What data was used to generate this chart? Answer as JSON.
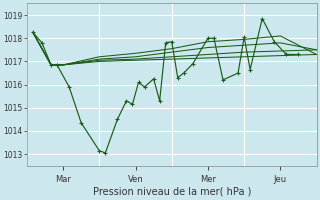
{
  "xlabel": "Pression niveau de la mer( hPa )",
  "bg_color": "#cce8ee",
  "line_color": "#1a5c1a",
  "grid_color": "#b0d8e0",
  "ylim": [
    1012.5,
    1019.5
  ],
  "yticks": [
    1013,
    1014,
    1015,
    1016,
    1017,
    1018,
    1019
  ],
  "xlim": [
    0,
    96
  ],
  "day_ticks": [
    12,
    36,
    60,
    84
  ],
  "day_lines": [
    0,
    24,
    48,
    72,
    96
  ],
  "day_labels": [
    "Mar",
    "Ven",
    "Mer",
    "Jeu"
  ],
  "series_main": [
    [
      2,
      1018.25
    ],
    [
      5,
      1017.8
    ],
    [
      8,
      1016.85
    ],
    [
      10,
      1016.85
    ],
    [
      14,
      1015.9
    ],
    [
      18,
      1014.35
    ],
    [
      24,
      1013.15
    ],
    [
      26,
      1013.05
    ],
    [
      30,
      1014.5
    ],
    [
      33,
      1015.3
    ],
    [
      35,
      1015.15
    ],
    [
      37,
      1016.1
    ],
    [
      39,
      1015.9
    ],
    [
      42,
      1016.25
    ],
    [
      44,
      1015.3
    ],
    [
      46,
      1017.8
    ],
    [
      48,
      1017.85
    ],
    [
      50,
      1016.3
    ],
    [
      52,
      1016.5
    ],
    [
      55,
      1016.9
    ],
    [
      60,
      1018.0
    ],
    [
      62,
      1018.0
    ],
    [
      65,
      1016.2
    ],
    [
      70,
      1016.5
    ],
    [
      72,
      1018.05
    ],
    [
      74,
      1016.65
    ],
    [
      78,
      1018.85
    ],
    [
      82,
      1017.85
    ],
    [
      86,
      1017.3
    ],
    [
      90,
      1017.3
    ]
  ],
  "series_flat": [
    [
      [
        2,
        1018.25
      ],
      [
        8,
        1016.85
      ],
      [
        12,
        1016.85
      ],
      [
        24,
        1017.0
      ],
      [
        36,
        1017.05
      ],
      [
        48,
        1017.1
      ],
      [
        60,
        1017.15
      ],
      [
        72,
        1017.2
      ],
      [
        84,
        1017.25
      ],
      [
        96,
        1017.3
      ]
    ],
    [
      [
        2,
        1018.25
      ],
      [
        8,
        1016.85
      ],
      [
        12,
        1016.85
      ],
      [
        24,
        1017.05
      ],
      [
        36,
        1017.1
      ],
      [
        48,
        1017.2
      ],
      [
        60,
        1017.3
      ],
      [
        72,
        1017.4
      ],
      [
        84,
        1017.45
      ],
      [
        96,
        1017.5
      ]
    ],
    [
      [
        2,
        1018.25
      ],
      [
        8,
        1016.85
      ],
      [
        12,
        1016.85
      ],
      [
        24,
        1017.1
      ],
      [
        36,
        1017.2
      ],
      [
        48,
        1017.4
      ],
      [
        60,
        1017.6
      ],
      [
        72,
        1017.7
      ],
      [
        84,
        1017.8
      ],
      [
        96,
        1017.5
      ]
    ],
    [
      [
        2,
        1018.25
      ],
      [
        8,
        1016.85
      ],
      [
        12,
        1016.85
      ],
      [
        24,
        1017.2
      ],
      [
        36,
        1017.35
      ],
      [
        48,
        1017.55
      ],
      [
        60,
        1017.85
      ],
      [
        72,
        1017.95
      ],
      [
        84,
        1018.1
      ],
      [
        96,
        1017.3
      ]
    ]
  ]
}
